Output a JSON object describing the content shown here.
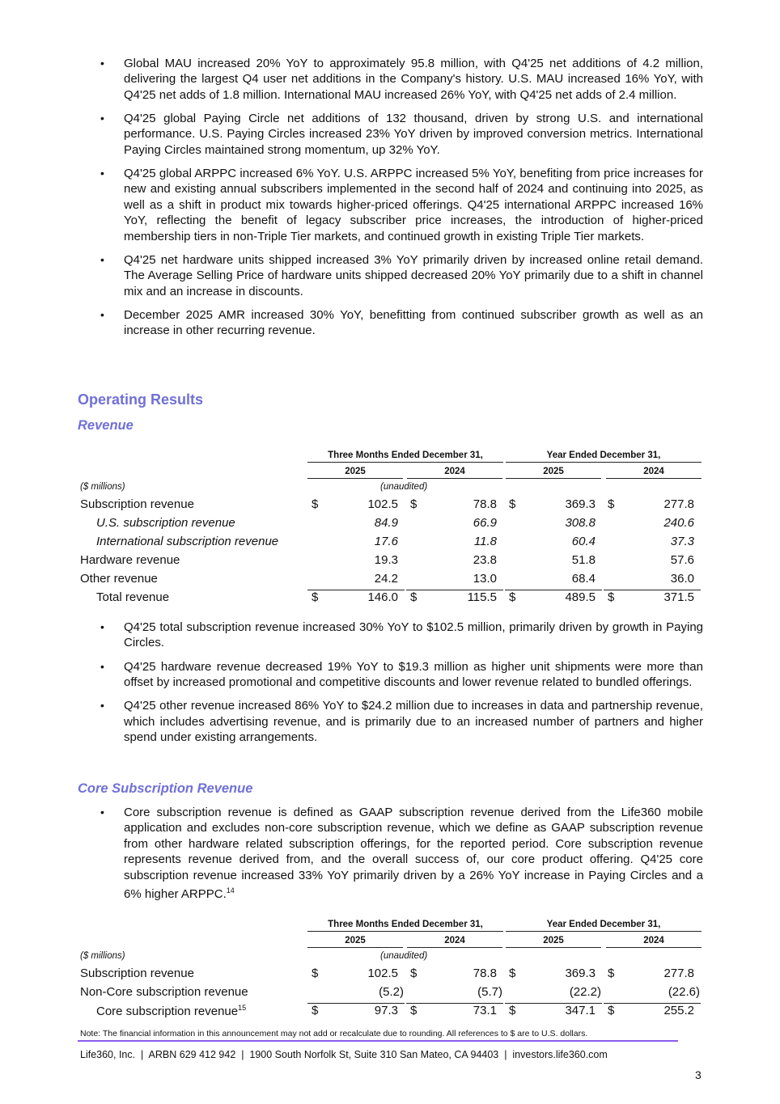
{
  "top_bullets": [
    "Global MAU increased 20% YoY to approximately 95.8 million, with Q4'25 net additions of 4.2 million, delivering the largest Q4 user net additions in the Company's history. U.S. MAU increased 16% YoY, with Q4'25 net adds of 1.8 million. International MAU increased 26% YoY, with Q4'25 net adds of 2.4 million.",
    "Q4'25 global Paying Circle net additions of 132 thousand, driven by strong U.S. and international performance. U.S. Paying Circles increased 23% YoY driven by improved conversion metrics. International Paying Circles maintained strong momentum, up 32% YoY.",
    "Q4'25 global ARPPC increased 6% YoY. U.S. ARPPC increased 5% YoY, benefiting from price increases for new and existing annual subscribers implemented in the second half of 2024 and continuing into 2025, as well as a shift in product mix towards higher-priced offerings. Q4'25 international ARPPC increased 16% YoY, reflecting the benefit of legacy subscriber price increases, the introduction of higher-priced membership tiers in non-Triple Tier markets, and continued growth in existing Triple Tier markets.",
    "Q4'25 net hardware units shipped increased 3% YoY primarily driven by increased online retail demand. The Average Selling Price of hardware units shipped decreased 20% YoY primarily due to a shift in channel mix and an increase in discounts.",
    "December 2025 AMR increased 30% YoY, benefitting from continued subscriber growth as well as an increase in other recurring revenue."
  ],
  "bullet_symbol": "•",
  "section_title": "Operating Results",
  "revenue": {
    "title": "Revenue",
    "group_headers": [
      "Three Months Ended December 31,",
      "Year Ended December 31,"
    ],
    "years": [
      "2025",
      "2024",
      "2025",
      "2024"
    ],
    "units_label": "($ millions)",
    "unaudited": "(unaudited)",
    "currency": "$",
    "rows": [
      {
        "label": "Subscription revenue",
        "values": [
          "102.5",
          "78.8",
          "369.3",
          "277.8"
        ]
      },
      {
        "label": "U.S. subscription revenue",
        "values": [
          "84.9",
          "66.9",
          "308.8",
          "240.6"
        ]
      },
      {
        "label": "International subscription revenue",
        "values": [
          "17.6",
          "11.8",
          "60.4",
          "37.3"
        ]
      },
      {
        "label": "Hardware revenue",
        "values": [
          "19.3",
          "23.8",
          "51.8",
          "57.6"
        ]
      },
      {
        "label": "Other revenue",
        "values": [
          "24.2",
          "13.0",
          "68.4",
          "36.0"
        ]
      },
      {
        "label": "Total revenue",
        "values": [
          "146.0",
          "115.5",
          "489.5",
          "371.5"
        ]
      }
    ],
    "bullets": [
      "Q4'25 total subscription revenue increased 30% YoY to $102.5 million, primarily driven by growth in Paying Circles.",
      "Q4'25 hardware revenue decreased 19% YoY to $19.3 million as higher unit shipments were more than offset by increased promotional and competitive discounts and lower revenue related to bundled offerings.",
      "Q4'25 other revenue increased 86% YoY to $24.2 million due to increases in data and partnership revenue, which includes advertising revenue, and is primarily due to an increased number of partners and higher spend under existing arrangements."
    ]
  },
  "core": {
    "title": "Core Subscription Revenue",
    "bullet": "Core subscription revenue is defined as GAAP subscription revenue derived from the Life360 mobile application and excludes non-core subscription revenue, which we define as GAAP subscription revenue from other hardware related subscription offerings, for the reported period. Core subscription revenue represents revenue derived from, and the overall success of, our core product offering. Q4'25 core subscription revenue increased 33% YoY primarily driven by a 26% YoY increase in Paying Circles and a 6% higher ARPPC.",
    "bullet_footnote": "14",
    "rows": [
      {
        "label": "Subscription revenue",
        "values": [
          "102.5",
          "78.8",
          "369.3",
          "277.8"
        ]
      },
      {
        "label": "Non-Core subscription revenue",
        "values": [
          "(5.2)",
          "(5.7)",
          "(22.2)",
          "(22.6)"
        ]
      },
      {
        "label": "Core subscription revenue",
        "footnote": "15",
        "values": [
          "97.3",
          "73.1",
          "347.1",
          "255.2"
        ]
      }
    ]
  },
  "note": "Note: The financial information in this announcement may not add or recalculate due to rounding. All references to $ are to U.S. dollars.",
  "footer": "Life360, Inc.  |  ARBN 629 412 942  |  1900 South Norfolk St, Suite 310 San Mateo, CA 94403  |  investors.life360.com",
  "page_number": "3",
  "colors": {
    "heading": "#7070d8",
    "footer_rule": "#8a5cf0"
  }
}
